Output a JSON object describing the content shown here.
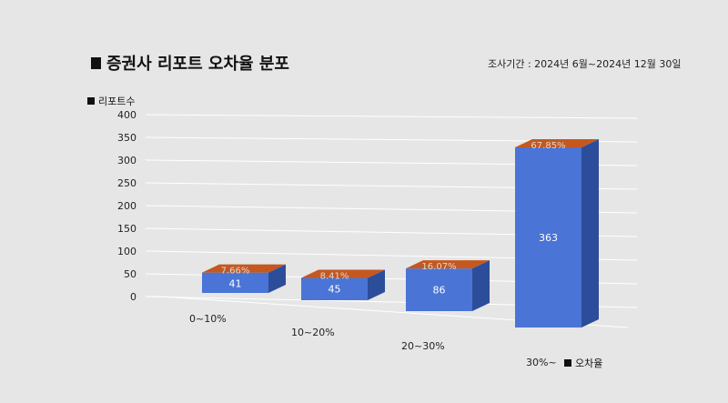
{
  "chart_data": {
    "type": "bar",
    "title": "증권사 리포트 오차율 분포",
    "subtitle": "조사기간 : 2024년 6월~2024년 12월 30일",
    "ylabel": "리포트수",
    "xlabel": "오차율",
    "categories": [
      "0~10%",
      "10~20%",
      "20~30%",
      "30%~"
    ],
    "values": [
      41,
      45,
      86,
      363
    ],
    "percent_labels": [
      "7.66%",
      "8.41%",
      "16.07%",
      "67.85%"
    ],
    "y_ticks": [
      "0",
      "50",
      "100",
      "150",
      "200",
      "250",
      "300",
      "350",
      "400"
    ],
    "ylim": [
      0,
      400
    ],
    "grid": true,
    "style": "3d",
    "colors": {
      "bar_front": "#4a74d6",
      "bar_side": "#2c4d9a",
      "bar_top": "#c5581f",
      "grid": "#ffffff",
      "background": "#e6e6e6"
    }
  }
}
